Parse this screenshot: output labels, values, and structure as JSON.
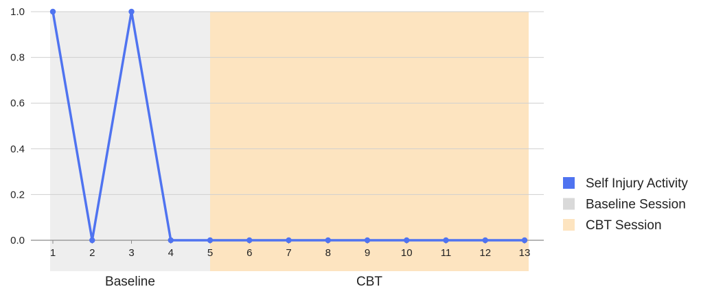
{
  "chart_data": {
    "type": "line",
    "x": [
      1,
      2,
      3,
      4,
      5,
      6,
      7,
      8,
      9,
      10,
      11,
      12,
      13
    ],
    "series": [
      {
        "name": "Self Injury Activity",
        "color": "#4f73f0",
        "values": [
          1,
          0,
          1,
          0,
          0,
          0,
          0,
          0,
          0,
          0,
          0,
          0,
          0
        ]
      }
    ],
    "phases": [
      {
        "name": "Baseline Session",
        "label": "Baseline",
        "start": 1,
        "end": 5,
        "color": "#eeeeee"
      },
      {
        "name": "CBT Session",
        "label": "CBT",
        "start": 5,
        "end": 13,
        "color": "#fde4c0"
      }
    ],
    "ylim": [
      0,
      1
    ],
    "yticks": [
      "0.0",
      "0.2",
      "0.4",
      "0.6",
      "0.8",
      "1.0"
    ],
    "xticks": [
      "1",
      "2",
      "3",
      "4",
      "5",
      "6",
      "7",
      "8",
      "9",
      "10",
      "11",
      "12",
      "13"
    ],
    "grid": true,
    "legend_position": "right",
    "legend": [
      {
        "label": "Self Injury Activity",
        "color": "#4f73f0"
      },
      {
        "label": "Baseline Session",
        "color": "#d9d9d9"
      },
      {
        "label": "CBT Session",
        "color": "#fde4c0"
      }
    ]
  }
}
